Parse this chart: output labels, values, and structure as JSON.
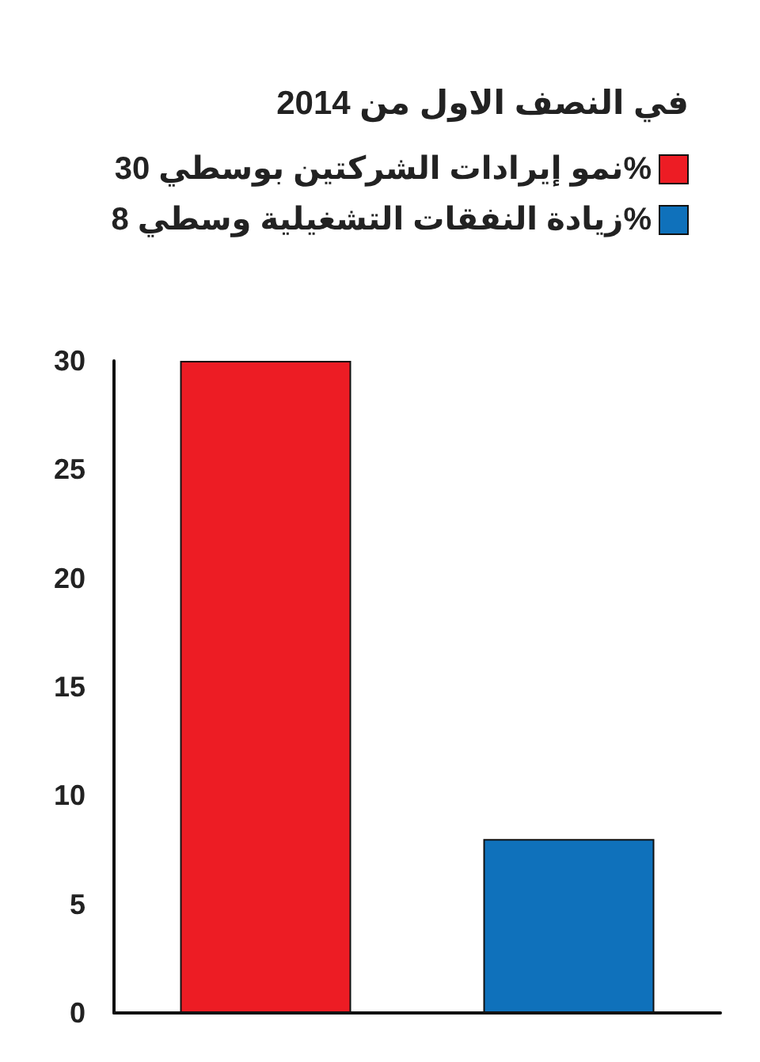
{
  "chart_data": {
    "type": "bar",
    "title": "في النصف الاول من 2014",
    "categories": [
      null,
      null
    ],
    "series": [
      {
        "name": "نمو إيرادات الشركتين بوسطي 30%",
        "color": "#ed1c24",
        "values": [
          30,
          null
        ]
      },
      {
        "name": "زيادة النفقات التشغيلية وسطي 8%",
        "color": "#0f71bb",
        "values": [
          null,
          8
        ]
      }
    ],
    "ylim": [
      0,
      30
    ],
    "yticks": [
      0,
      5,
      10,
      15,
      20,
      25,
      30
    ],
    "grid": false,
    "legend": "top right"
  }
}
